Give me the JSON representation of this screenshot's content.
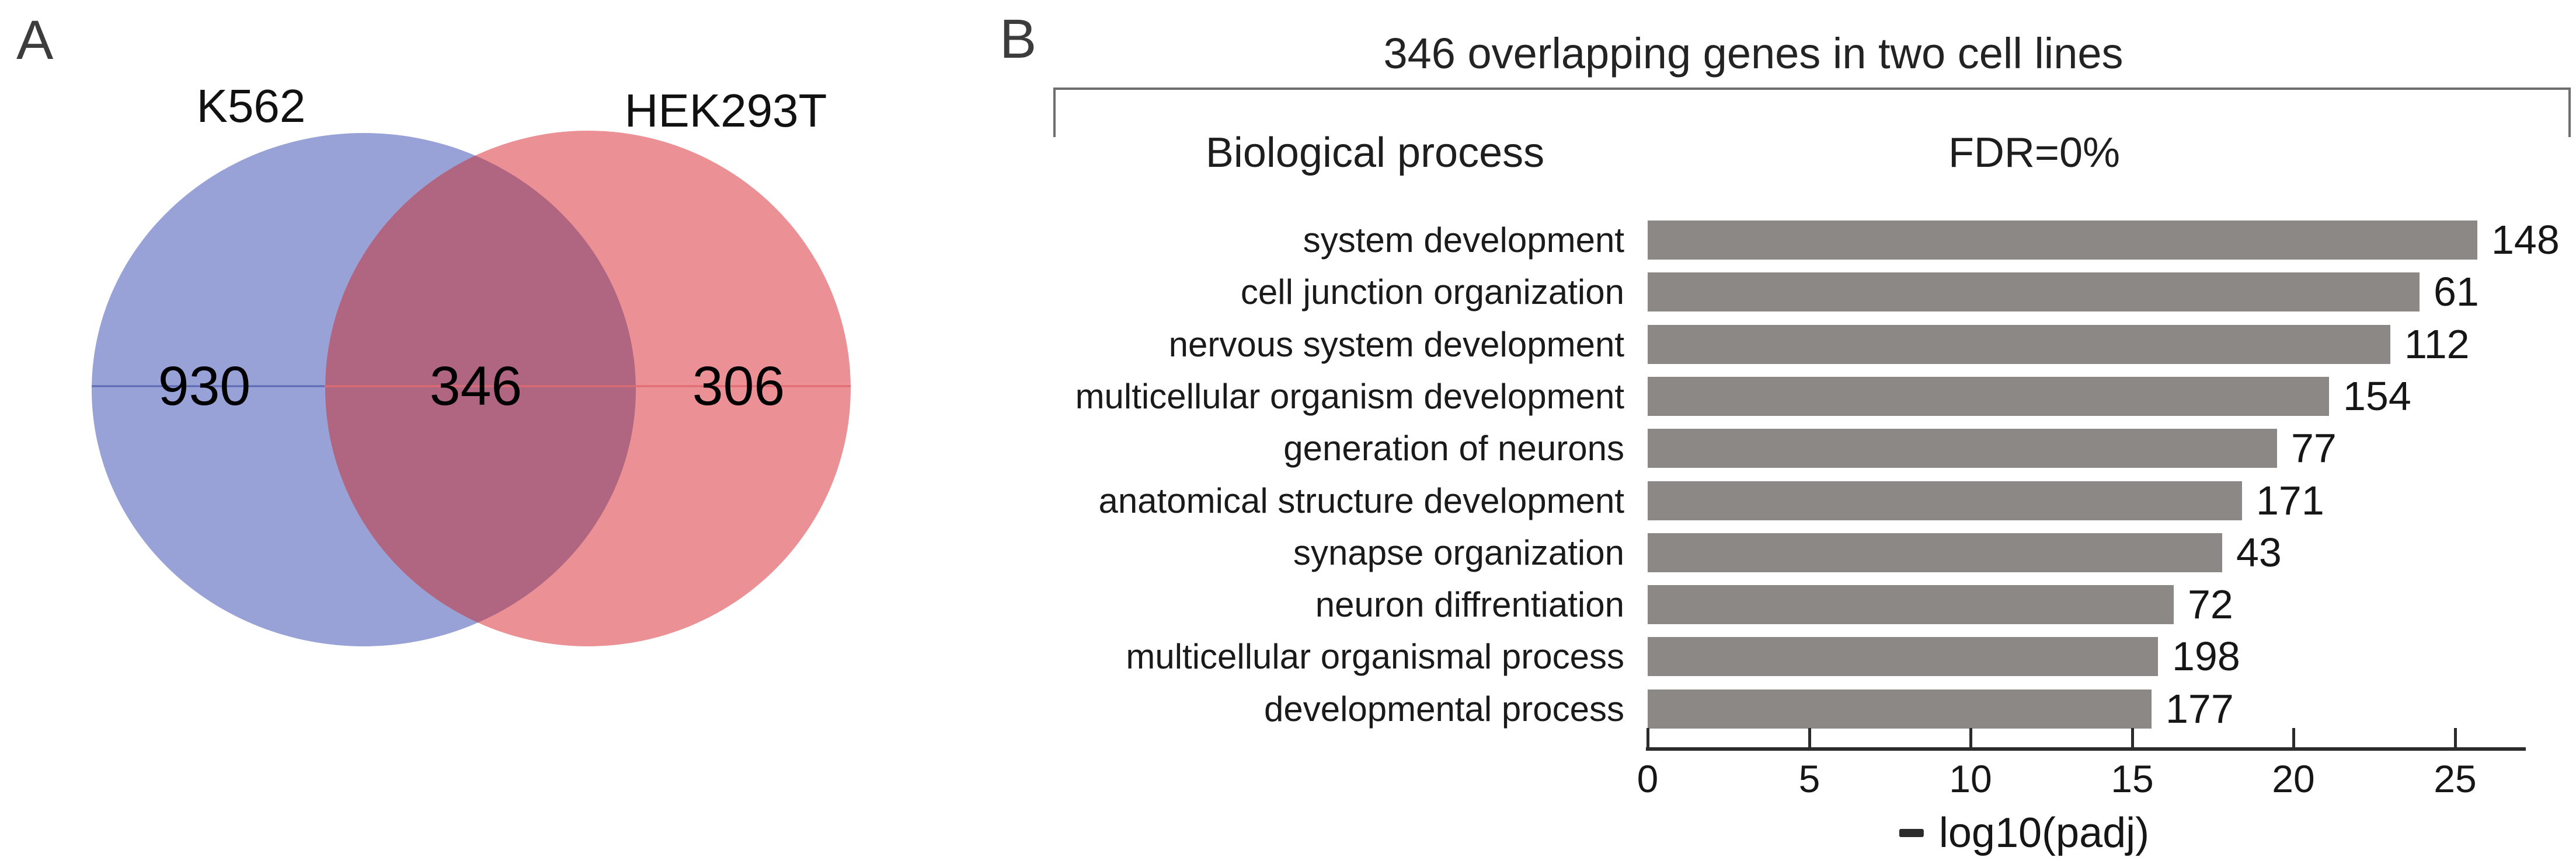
{
  "panel_a": {
    "letter": "A",
    "venn": {
      "left_label": "K562",
      "right_label": "HEK293T",
      "left_count": "930",
      "overlap_count": "346",
      "right_count": "306",
      "left_fill": "#98a2d7",
      "right_fill": "#eb9196",
      "overlap_fill": "#b06680",
      "left_line_color": "#5c6ab5",
      "right_line_color": "#e06a72"
    }
  },
  "panel_b": {
    "letter": "B",
    "title": "346 overlapping genes in two cell lines",
    "left_header": "Biological process",
    "right_header": "FDR=0%",
    "axis_label_sign": "minus-dash",
    "axis_label": "log10(padj)"
  },
  "chart_data": {
    "type": "bar",
    "orientation": "horizontal",
    "title": "346 overlapping genes in two cell lines",
    "subtitle": "FDR=0%",
    "categories_header": "Biological process",
    "categories": [
      "system development",
      "cell junction organization",
      "nervous system development",
      "multicellular organism development",
      "generation of neurons",
      "anatomical structure development",
      "synapse organization",
      "neuron diffrentiation",
      "multicellular organismal  process",
      "developmental process"
    ],
    "values": [
      25.7,
      23.9,
      23.0,
      21.1,
      19.5,
      18.4,
      17.8,
      16.3,
      15.8,
      15.6
    ],
    "bar_end_labels": [
      "148",
      "61",
      "112",
      "154",
      "77",
      "171",
      "43",
      "72",
      "198",
      "177"
    ],
    "xlabel": "− log10(padj)",
    "x_ticks": [
      0,
      5,
      10,
      15,
      20,
      25
    ],
    "xlim": [
      0,
      27.2
    ],
    "bar_color": "#8b8885",
    "grid": false,
    "legend": null
  }
}
